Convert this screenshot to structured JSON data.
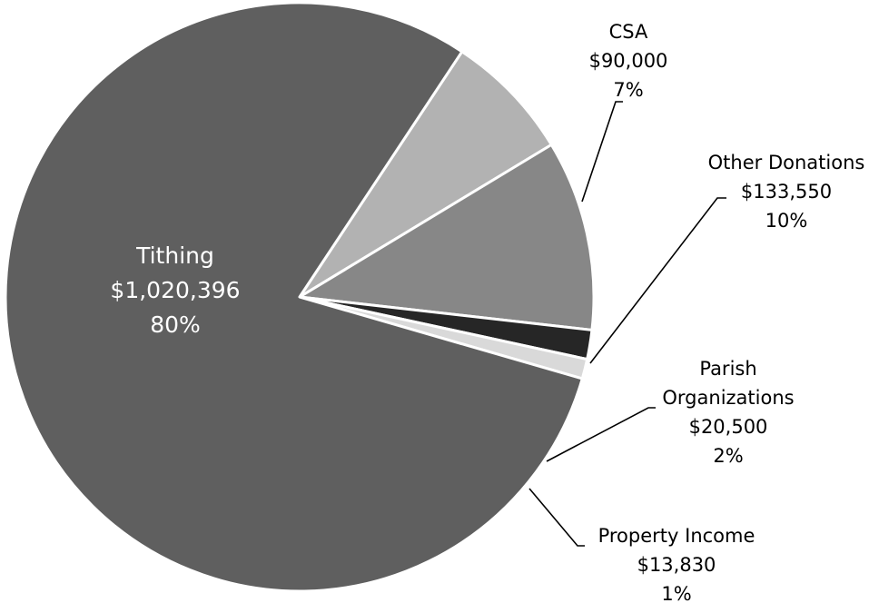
{
  "chart_data": {
    "type": "pie",
    "title": "",
    "slices": [
      {
        "name": "Tithing",
        "value": 1020396,
        "value_label": "$1,020,396",
        "percent_label": "80%",
        "color": "#5f5f5f",
        "label_color": "#ffffff"
      },
      {
        "name": "CSA",
        "value": 90000,
        "value_label": "$90,000",
        "percent_label": "7%",
        "color": "#b2b2b2",
        "label_color": "#000000"
      },
      {
        "name": "Other Donations",
        "value": 133550,
        "value_label": "$133,550",
        "percent_label": "10%",
        "color": "#878787",
        "label_color": "#000000"
      },
      {
        "name": "Parish Organizations",
        "name_lines": [
          "Parish",
          "Organizations"
        ],
        "value": 20500,
        "value_label": "$20,500",
        "percent_label": "2%",
        "color": "#262626",
        "label_color": "#000000"
      },
      {
        "name": "Property Income",
        "value": 13830,
        "value_label": "$13,830",
        "percent_label": "1%",
        "color": "#d9d9d9",
        "label_color": "#000000"
      }
    ],
    "legend": "none"
  }
}
